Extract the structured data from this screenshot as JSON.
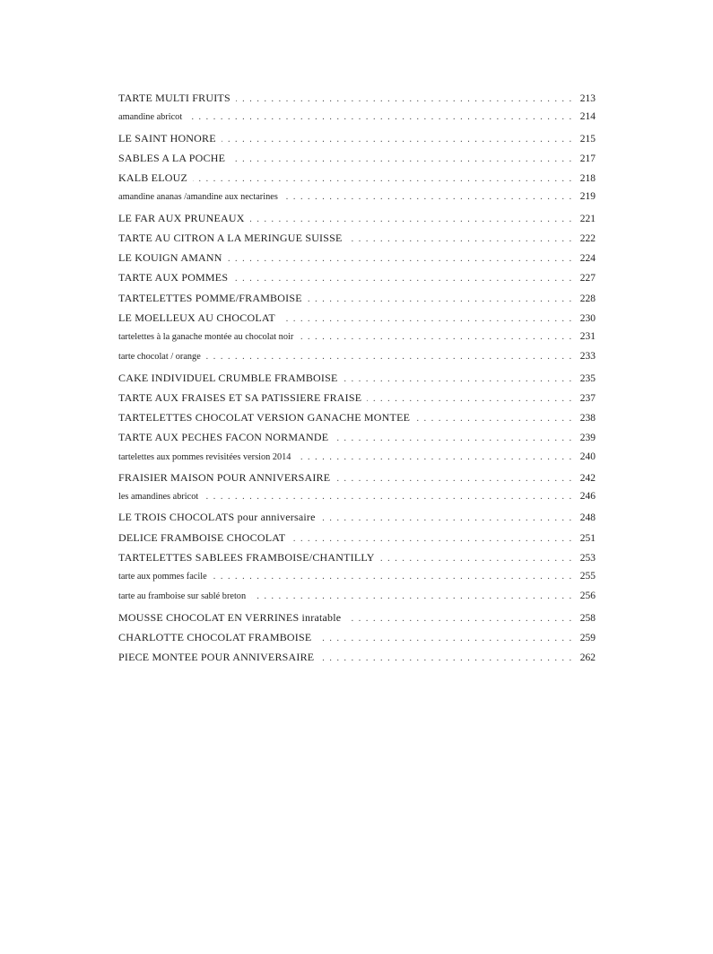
{
  "entries": [
    {
      "title": "TARTE MULTI FRUITS",
      "page": "213",
      "small": false
    },
    {
      "title": "amandine abricot",
      "page": "214",
      "small": true
    },
    {
      "title": "LE SAINT HONORE",
      "page": "215",
      "small": false
    },
    {
      "title": "SABLES A LA POCHE",
      "page": "217",
      "small": false
    },
    {
      "title": "KALB ELOUZ",
      "page": "218",
      "small": false
    },
    {
      "title": "amandine ananas /amandine aux nectarines",
      "page": "219",
      "small": true
    },
    {
      "title": "LE FAR AUX PRUNEAUX",
      "page": "221",
      "small": false
    },
    {
      "title": "TARTE AU CITRON A LA MERINGUE SUISSE",
      "page": "222",
      "small": false
    },
    {
      "title": "LE KOUIGN AMANN",
      "page": "224",
      "small": false
    },
    {
      "title": "TARTE AUX POMMES",
      "page": "227",
      "small": false
    },
    {
      "title": "TARTELETTES POMME/FRAMBOISE",
      "page": "228",
      "small": false
    },
    {
      "title": "LE MOELLEUX AU CHOCOLAT",
      "page": "230",
      "small": false
    },
    {
      "title": "tartelettes à la ganache montée au chocolat noir",
      "page": "231",
      "small": true
    },
    {
      "title": "tarte chocolat / orange",
      "page": "233",
      "small": true
    },
    {
      "title": "CAKE INDIVIDUEL CRUMBLE FRAMBOISE",
      "page": "235",
      "small": false
    },
    {
      "title": "TARTE AUX FRAISES ET SA PATISSIERE FRAISE",
      "page": "237",
      "small": false
    },
    {
      "title": "TARTELETTES CHOCOLAT VERSION GANACHE MONTEE",
      "page": "238",
      "small": false
    },
    {
      "title": "TARTE AUX PECHES FACON NORMANDE",
      "page": "239",
      "small": false
    },
    {
      "title": "tartelettes aux pommes revisitées version 2014",
      "page": "240",
      "small": true
    },
    {
      "title": "FRAISIER MAISON POUR ANNIVERSAIRE",
      "page": "242",
      "small": false
    },
    {
      "title": "les amandines abricot",
      "page": "246",
      "small": true
    },
    {
      "title": "LE TROIS CHOCOLATS pour anniversaire",
      "page": "248",
      "small": false
    },
    {
      "title": "DELICE FRAMBOISE CHOCOLAT",
      "page": "251",
      "small": false
    },
    {
      "title": "TARTELETTES SABLEES FRAMBOISE/CHANTILLY",
      "page": "253",
      "small": false
    },
    {
      "title": "tarte aux pommes facile",
      "page": "255",
      "small": true
    },
    {
      "title": "tarte au framboise sur sablé breton",
      "page": "256",
      "small": true
    },
    {
      "title": "MOUSSE CHOCOLAT EN VERRINES inratable",
      "page": "258",
      "small": false
    },
    {
      "title": "CHARLOTTE CHOCOLAT FRAMBOISE",
      "page": "259",
      "small": false
    },
    {
      "title": "PIECE MONTEE POUR ANNIVERSAIRE",
      "page": "262",
      "small": false
    }
  ]
}
